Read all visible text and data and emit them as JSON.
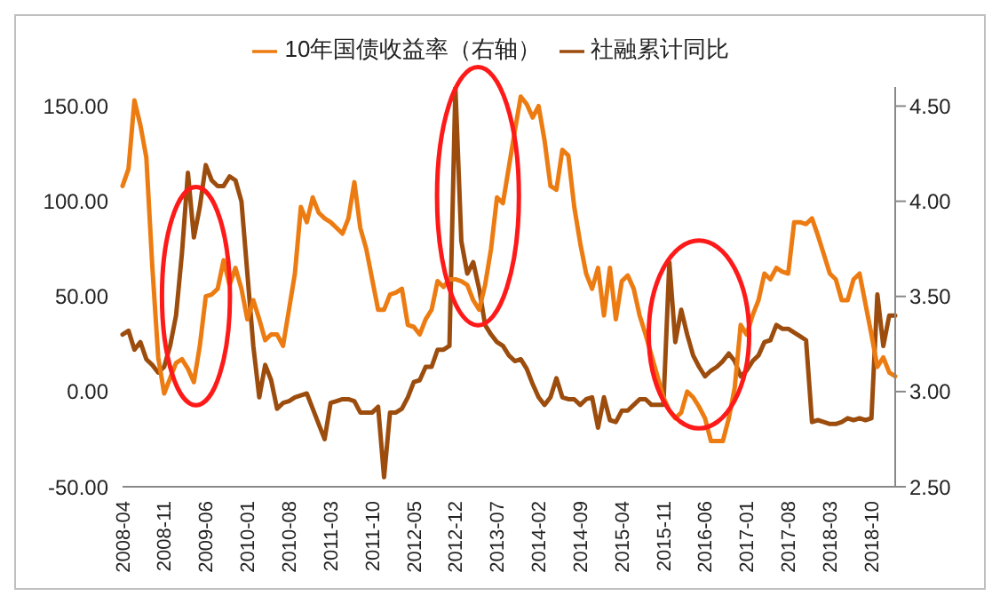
{
  "chart_data": {
    "type": "line",
    "categories": [
      "2008-04",
      null,
      null,
      null,
      null,
      null,
      null,
      "2008-11",
      null,
      null,
      null,
      null,
      null,
      null,
      "2009-06",
      null,
      null,
      null,
      null,
      null,
      null,
      "2010-01",
      null,
      null,
      null,
      null,
      null,
      null,
      "2010-08",
      null,
      null,
      null,
      null,
      null,
      null,
      "2011-03",
      null,
      null,
      null,
      null,
      null,
      null,
      "2011-10",
      null,
      null,
      null,
      null,
      null,
      null,
      "2012-05",
      null,
      null,
      null,
      null,
      null,
      null,
      "2012-12",
      null,
      null,
      null,
      null,
      null,
      null,
      "2013-07",
      null,
      null,
      null,
      null,
      null,
      null,
      "2014-02",
      null,
      null,
      null,
      null,
      null,
      null,
      "2014-09",
      null,
      null,
      null,
      null,
      null,
      null,
      "2015-04",
      null,
      null,
      null,
      null,
      null,
      null,
      "2015-11",
      null,
      null,
      null,
      null,
      null,
      null,
      "2016-06",
      null,
      null,
      null,
      null,
      null,
      null,
      "2017-01",
      null,
      null,
      null,
      null,
      null,
      null,
      "2017-08",
      null,
      null,
      null,
      null,
      null,
      null,
      "2018-03",
      null,
      null,
      null,
      null,
      null,
      null,
      "2018-10",
      null,
      null,
      null,
      null
    ],
    "series": [
      {
        "name": "社融累计同比",
        "color": "#9c4d0e",
        "values": [
          30,
          32,
          22,
          26,
          17,
          14,
          10,
          13,
          24,
          40,
          73,
          115,
          81,
          97,
          119,
          111,
          108,
          108,
          113,
          111,
          100,
          62,
          24,
          -3,
          14,
          6,
          -9,
          -6,
          -5,
          -3,
          -2,
          -1,
          -9,
          -17,
          -25,
          -6,
          -5,
          -4,
          -4,
          -5,
          -11,
          -11,
          -11,
          -8,
          -45,
          -11,
          -11,
          -9,
          -3,
          5,
          6,
          13,
          13,
          22,
          22,
          24,
          160,
          79,
          62,
          68,
          54,
          35,
          30,
          26,
          24,
          19,
          16,
          17,
          12,
          4,
          -3,
          -7,
          -3,
          7,
          -3,
          -4,
          -4,
          -7,
          -4,
          -3,
          -19,
          -3,
          -15,
          -16,
          -10,
          -10,
          -7,
          -4,
          -4,
          -7,
          -7,
          -7,
          68,
          26,
          43,
          30,
          19,
          13,
          8,
          11,
          13,
          16,
          20,
          16,
          8,
          11,
          16,
          19,
          26,
          27,
          35,
          33,
          33,
          31,
          29,
          27,
          -16,
          -15,
          -16,
          -17,
          -17,
          -16,
          -14,
          -15,
          -14,
          -15,
          -14,
          51,
          24,
          40,
          40
        ]
      },
      {
        "name": "10年国债收益率（右轴）",
        "color": "#ec7c12",
        "axis": "y2",
        "values": [
          4.08,
          4.17,
          4.53,
          4.4,
          4.23,
          3.66,
          3.18,
          2.99,
          3.07,
          3.15,
          3.17,
          3.12,
          3.05,
          3.24,
          3.5,
          3.51,
          3.54,
          3.69,
          3.56,
          3.65,
          3.54,
          3.38,
          3.48,
          3.38,
          3.27,
          3.3,
          3.3,
          3.24,
          3.43,
          3.62,
          3.97,
          3.89,
          4.02,
          3.94,
          3.91,
          3.89,
          3.86,
          3.83,
          3.91,
          4.1,
          3.86,
          3.75,
          3.59,
          3.43,
          3.43,
          3.51,
          3.52,
          3.54,
          3.35,
          3.34,
          3.3,
          3.38,
          3.43,
          3.58,
          3.55,
          3.59,
          3.59,
          3.58,
          3.56,
          3.48,
          3.43,
          3.56,
          3.75,
          4.02,
          3.99,
          4.18,
          4.37,
          4.55,
          4.51,
          4.44,
          4.5,
          4.32,
          4.08,
          4.06,
          4.27,
          4.24,
          3.97,
          3.78,
          3.62,
          3.54,
          3.65,
          3.4,
          3.65,
          3.38,
          3.58,
          3.61,
          3.54,
          3.4,
          3.3,
          3.19,
          3.08,
          2.97,
          2.9,
          2.86,
          2.89,
          3.0,
          2.97,
          2.92,
          2.86,
          2.74,
          2.74,
          2.74,
          2.86,
          3.02,
          3.35,
          3.3,
          3.4,
          3.48,
          3.62,
          3.59,
          3.65,
          3.63,
          3.62,
          3.89,
          3.89,
          3.88,
          3.91,
          3.82,
          3.72,
          3.62,
          3.59,
          3.48,
          3.48,
          3.59,
          3.62,
          3.46,
          3.3,
          3.13,
          3.18,
          3.1,
          3.08
        ]
      }
    ],
    "ylim": [
      -50,
      160
    ],
    "yticks": [
      {
        "value": -50,
        "label": "-50.00"
      },
      {
        "value": 0,
        "label": "0.00"
      },
      {
        "value": 50,
        "label": "50.00"
      },
      {
        "value": 100,
        "label": "100.00"
      },
      {
        "value": 150,
        "label": "150.00"
      }
    ],
    "y2lim": [
      2.5,
      4.6
    ],
    "y2ticks": [
      {
        "value": 2.5,
        "label": "2.50"
      },
      {
        "value": 3,
        "label": "3.00"
      },
      {
        "value": 3.5,
        "label": "3.50"
      },
      {
        "value": 4,
        "label": "4.00"
      },
      {
        "value": 4.5,
        "label": "4.50"
      }
    ],
    "grid": false,
    "legend": "top"
  }
}
